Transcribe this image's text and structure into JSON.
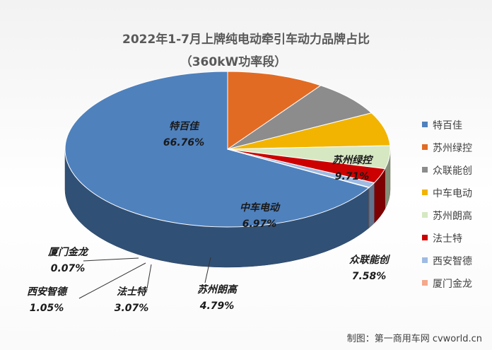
{
  "chart_data": {
    "type": "pie",
    "title": "2022年1-7月上牌纯电动牵引车动力品牌占比",
    "subtitle": "（360kW功率段）",
    "legend_position": "right",
    "slices": [
      {
        "name": "特百佳",
        "value": 66.76,
        "label": "66.76%",
        "color": "#4f81bd"
      },
      {
        "name": "苏州绿控",
        "value": 9.71,
        "label": "9.71%",
        "color": "#e26b24"
      },
      {
        "name": "众联能创",
        "value": 7.58,
        "label": "7.58%",
        "color": "#8c8c8c"
      },
      {
        "name": "中车电动",
        "value": 6.97,
        "label": "6.97%",
        "color": "#f2b400"
      },
      {
        "name": "苏州朗高",
        "value": 4.79,
        "label": "4.79%",
        "color": "#d6e8c2"
      },
      {
        "name": "法士特",
        "value": 3.07,
        "label": "3.07%",
        "color": "#cc0000"
      },
      {
        "name": "西安智德",
        "value": 1.05,
        "label": "1.05%",
        "color": "#9fbbe3"
      },
      {
        "name": "厦门金龙",
        "value": 0.07,
        "label": "0.07%",
        "color": "#f4a98c"
      }
    ]
  },
  "credit": "制图：第一商用车网 cvworld.cn"
}
